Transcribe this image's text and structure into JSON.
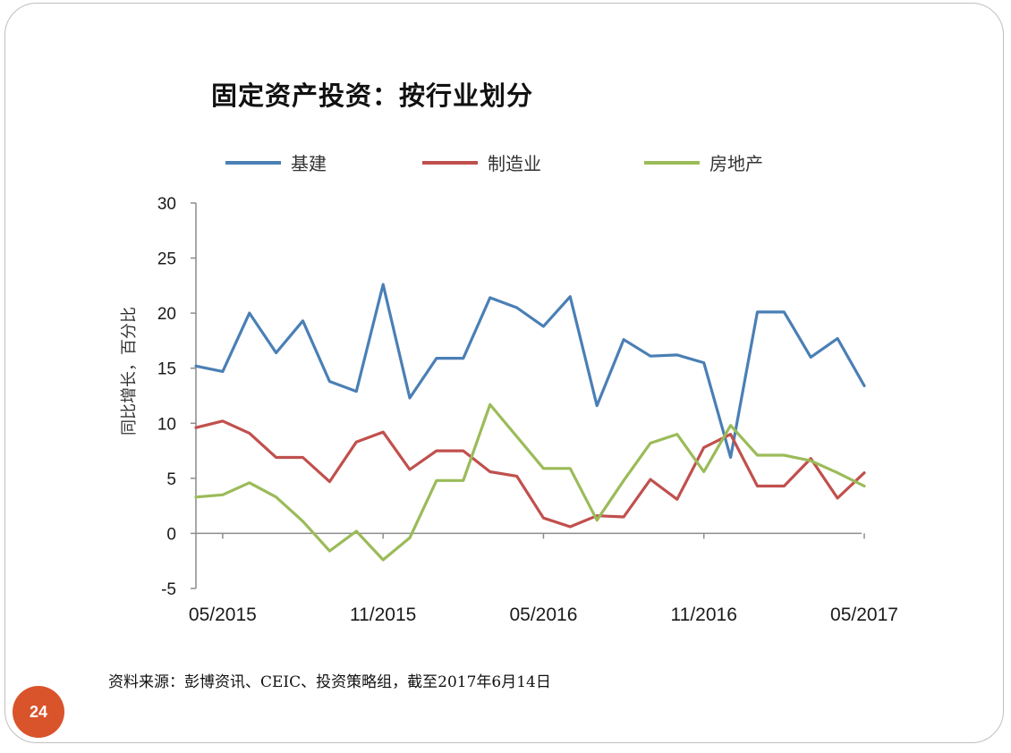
{
  "slide": {
    "title": "固定资产投资：按行业划分",
    "source_note": "资料来源：彭博资讯、CEIC、投资策略组，截至2017年6月14日",
    "page_number": "24"
  },
  "chart_data": {
    "type": "line",
    "ylabel": "同比增长，百分比",
    "xlabel": "",
    "ylim": [
      -5,
      30
    ],
    "yticks": [
      -5,
      0,
      5,
      10,
      15,
      20,
      25,
      30
    ],
    "xticks": [
      "05/2015",
      "11/2015",
      "05/2016",
      "11/2016",
      "05/2017"
    ],
    "legend_position": "top",
    "grid": false,
    "x": [
      "04/2015",
      "05/2015",
      "06/2015",
      "07/2015",
      "08/2015",
      "09/2015",
      "10/2015",
      "11/2015",
      "12/2015",
      "01/2016",
      "02/2016",
      "03/2016",
      "04/2016",
      "05/2016",
      "06/2016",
      "07/2016",
      "08/2016",
      "09/2016",
      "10/2016",
      "11/2016",
      "12/2016",
      "01/2017",
      "02/2017",
      "03/2017",
      "04/2017",
      "05/2017"
    ],
    "series": [
      {
        "name": "基建",
        "color": "#4a7fb5",
        "values": [
          15.2,
          14.7,
          20.0,
          16.4,
          19.3,
          13.8,
          12.9,
          22.6,
          12.3,
          15.9,
          15.9,
          21.4,
          20.5,
          18.8,
          21.5,
          11.6,
          17.6,
          16.1,
          16.2,
          15.5,
          6.9,
          20.1,
          20.1,
          16.0,
          17.7,
          13.4
        ]
      },
      {
        "name": "制造业",
        "color": "#c0504d",
        "values": [
          9.6,
          10.2,
          9.1,
          6.9,
          6.9,
          4.7,
          8.3,
          9.2,
          5.8,
          7.5,
          7.5,
          5.6,
          5.2,
          1.4,
          0.6,
          1.6,
          1.5,
          4.9,
          3.1,
          7.8,
          9.0,
          4.3,
          4.3,
          6.8,
          3.2,
          5.5
        ]
      },
      {
        "name": "房地产",
        "color": "#9bbb59",
        "values": [
          3.3,
          3.5,
          4.6,
          3.3,
          1.1,
          -1.6,
          0.2,
          -2.4,
          -0.4,
          4.8,
          4.8,
          11.7,
          8.8,
          5.9,
          5.9,
          1.2,
          4.8,
          8.2,
          9.0,
          5.6,
          9.8,
          7.1,
          7.1,
          6.6,
          5.5,
          4.3
        ]
      }
    ]
  }
}
